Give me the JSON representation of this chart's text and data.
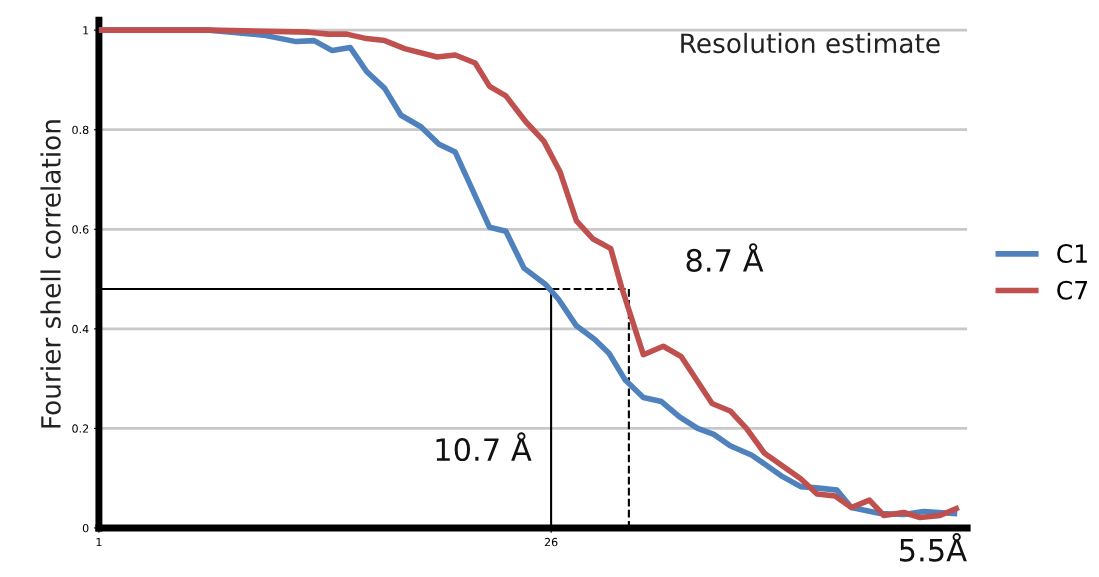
{
  "chart_data": {
    "type": "line",
    "title": "Resolution estimate",
    "ylabel": "Fourier shell correlation",
    "xlim": [
      1,
      49
    ],
    "xticks": [
      1,
      26
    ],
    "ylim": [
      0,
      1.02
    ],
    "yticks": [
      0,
      0.2,
      0.4,
      0.6,
      0.8,
      1
    ],
    "grid": "y",
    "legend": "right",
    "marker": "none",
    "line_style": "solid",
    "series": [
      {
        "name": "C1",
        "color": "#4f81bd",
        "x": [
          1,
          7.1,
          10.1,
          11.9,
          12.9,
          13.9,
          14.9,
          15.8,
          16.8,
          17.7,
          18.8,
          19.8,
          20.7,
          22.6,
          23.5,
          24.5,
          25.7,
          26.4,
          27.4,
          28.4,
          29.2,
          30.1,
          31.1,
          32.1,
          33.1,
          34.1,
          35.0,
          35.9,
          37.1,
          37.9,
          38.8,
          39.8,
          40.8,
          41.8,
          42.6,
          44.2,
          45.5,
          46.6,
          48.3
        ],
        "values": [
          1.0,
          1.0,
          0.99,
          0.977,
          0.979,
          0.959,
          0.965,
          0.917,
          0.883,
          0.829,
          0.806,
          0.771,
          0.755,
          0.604,
          0.596,
          0.522,
          0.489,
          0.46,
          0.406,
          0.379,
          0.351,
          0.297,
          0.262,
          0.254,
          0.223,
          0.2,
          0.188,
          0.165,
          0.146,
          0.126,
          0.103,
          0.083,
          0.08,
          0.076,
          0.041,
          0.029,
          0.027,
          0.033,
          0.029
        ]
      },
      {
        "name": "C7",
        "color": "#c0504d",
        "x": [
          1,
          7.1,
          12.6,
          13.7,
          14.7,
          15.8,
          16.8,
          17.9,
          19.7,
          20.7,
          21.8,
          22.6,
          23.5,
          24.6,
          25.6,
          26.5,
          27.4,
          28.3,
          29.3,
          29.9,
          31.1,
          32.2,
          33.2,
          34.9,
          35.9,
          36.8,
          37.8,
          38.9,
          39.8,
          40.7,
          41.7,
          42.6,
          43.6,
          44.4,
          45.5,
          46.4,
          47.5,
          48.4
        ],
        "values": [
          1.0,
          1.0,
          0.996,
          0.992,
          0.992,
          0.983,
          0.979,
          0.963,
          0.946,
          0.95,
          0.934,
          0.887,
          0.868,
          0.816,
          0.777,
          0.715,
          0.617,
          0.581,
          0.561,
          0.483,
          0.348,
          0.365,
          0.344,
          0.25,
          0.235,
          0.2,
          0.15,
          0.122,
          0.099,
          0.068,
          0.064,
          0.041,
          0.056,
          0.025,
          0.031,
          0.021,
          0.025,
          0.039
        ]
      },
      {
        "color": "#000000",
        "line_style": "solid",
        "x": [
          1,
          26,
          26
        ],
        "values": [
          0.48,
          0.48,
          0
        ]
      },
      {
        "color": "#000000",
        "line_style": "dashed",
        "x": [
          1,
          30.3,
          30.3
        ],
        "values": [
          0.48,
          0.48,
          0
        ]
      }
    ],
    "annotations": [
      "10.7 Å",
      {
        "text": "8.7 Å",
        "x": 30.3,
        "y": 0.48
      },
      "5.5Å"
    ]
  }
}
